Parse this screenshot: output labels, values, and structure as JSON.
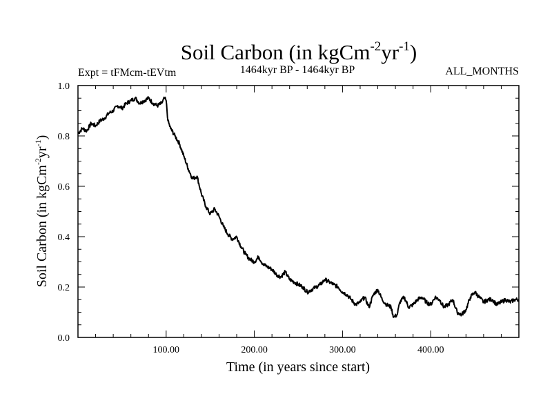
{
  "chart_data": {
    "type": "line",
    "title": {
      "main": "Soil Carbon (in kgCm",
      "sup1": "-2",
      "mid": "yr",
      "sup2": "-1",
      "end": ")"
    },
    "left_label": "Expt = tFMcm-tEVtm",
    "center_label": "1464kyr BP - 1464kyr BP",
    "right_label": "ALL_MONTHS",
    "xlabel": "Time (in years since start)",
    "ylabel": {
      "main": "Soil Carbon (in kgCm",
      "sup1": "-2",
      "mid": "yr",
      "sup2": "-1",
      "end": ")"
    },
    "xlim": [
      0,
      500
    ],
    "ylim": [
      0.0,
      1.0
    ],
    "x_ticks": [
      {
        "value": 100,
        "label": "100.00"
      },
      {
        "value": 200,
        "label": "200.00"
      },
      {
        "value": 300,
        "label": "300.00"
      },
      {
        "value": 400,
        "label": "400.00"
      }
    ],
    "y_ticks": [
      {
        "value": 0.0,
        "label": "0.0"
      },
      {
        "value": 0.2,
        "label": "0.2"
      },
      {
        "value": 0.4,
        "label": "0.4"
      },
      {
        "value": 0.6,
        "label": "0.6"
      },
      {
        "value": 0.8,
        "label": "0.8"
      },
      {
        "value": 1.0,
        "label": "1.0"
      }
    ],
    "series": [
      {
        "name": "Soil Carbon",
        "x": [
          0,
          5,
          10,
          15,
          20,
          25,
          30,
          35,
          40,
          45,
          50,
          55,
          60,
          65,
          70,
          75,
          80,
          85,
          90,
          95,
          98,
          100,
          102,
          105,
          110,
          115,
          120,
          125,
          130,
          135,
          140,
          145,
          150,
          155,
          160,
          165,
          170,
          175,
          180,
          185,
          190,
          195,
          200,
          205,
          210,
          215,
          220,
          225,
          230,
          235,
          240,
          245,
          250,
          255,
          260,
          265,
          270,
          275,
          280,
          285,
          290,
          295,
          300,
          305,
          310,
          315,
          320,
          325,
          330,
          335,
          340,
          345,
          350,
          355,
          358,
          362,
          365,
          370,
          375,
          380,
          385,
          390,
          395,
          400,
          405,
          410,
          415,
          420,
          425,
          430,
          435,
          440,
          445,
          450,
          455,
          460,
          465,
          470,
          475,
          480,
          485,
          490,
          495,
          500
        ],
        "y": [
          0.81,
          0.83,
          0.82,
          0.85,
          0.84,
          0.86,
          0.87,
          0.89,
          0.9,
          0.92,
          0.91,
          0.93,
          0.94,
          0.95,
          0.93,
          0.94,
          0.95,
          0.93,
          0.92,
          0.93,
          0.95,
          0.94,
          0.86,
          0.83,
          0.8,
          0.77,
          0.72,
          0.67,
          0.63,
          0.64,
          0.57,
          0.52,
          0.49,
          0.51,
          0.48,
          0.44,
          0.41,
          0.39,
          0.4,
          0.36,
          0.33,
          0.31,
          0.3,
          0.32,
          0.29,
          0.28,
          0.27,
          0.25,
          0.24,
          0.26,
          0.23,
          0.22,
          0.21,
          0.2,
          0.18,
          0.19,
          0.2,
          0.21,
          0.23,
          0.22,
          0.21,
          0.2,
          0.18,
          0.17,
          0.15,
          0.13,
          0.14,
          0.16,
          0.12,
          0.17,
          0.19,
          0.15,
          0.13,
          0.12,
          0.08,
          0.09,
          0.14,
          0.16,
          0.12,
          0.13,
          0.15,
          0.16,
          0.14,
          0.13,
          0.16,
          0.15,
          0.12,
          0.13,
          0.15,
          0.1,
          0.09,
          0.11,
          0.16,
          0.18,
          0.16,
          0.14,
          0.15,
          0.15,
          0.13,
          0.14,
          0.15,
          0.14,
          0.15,
          0.15
        ]
      }
    ]
  }
}
